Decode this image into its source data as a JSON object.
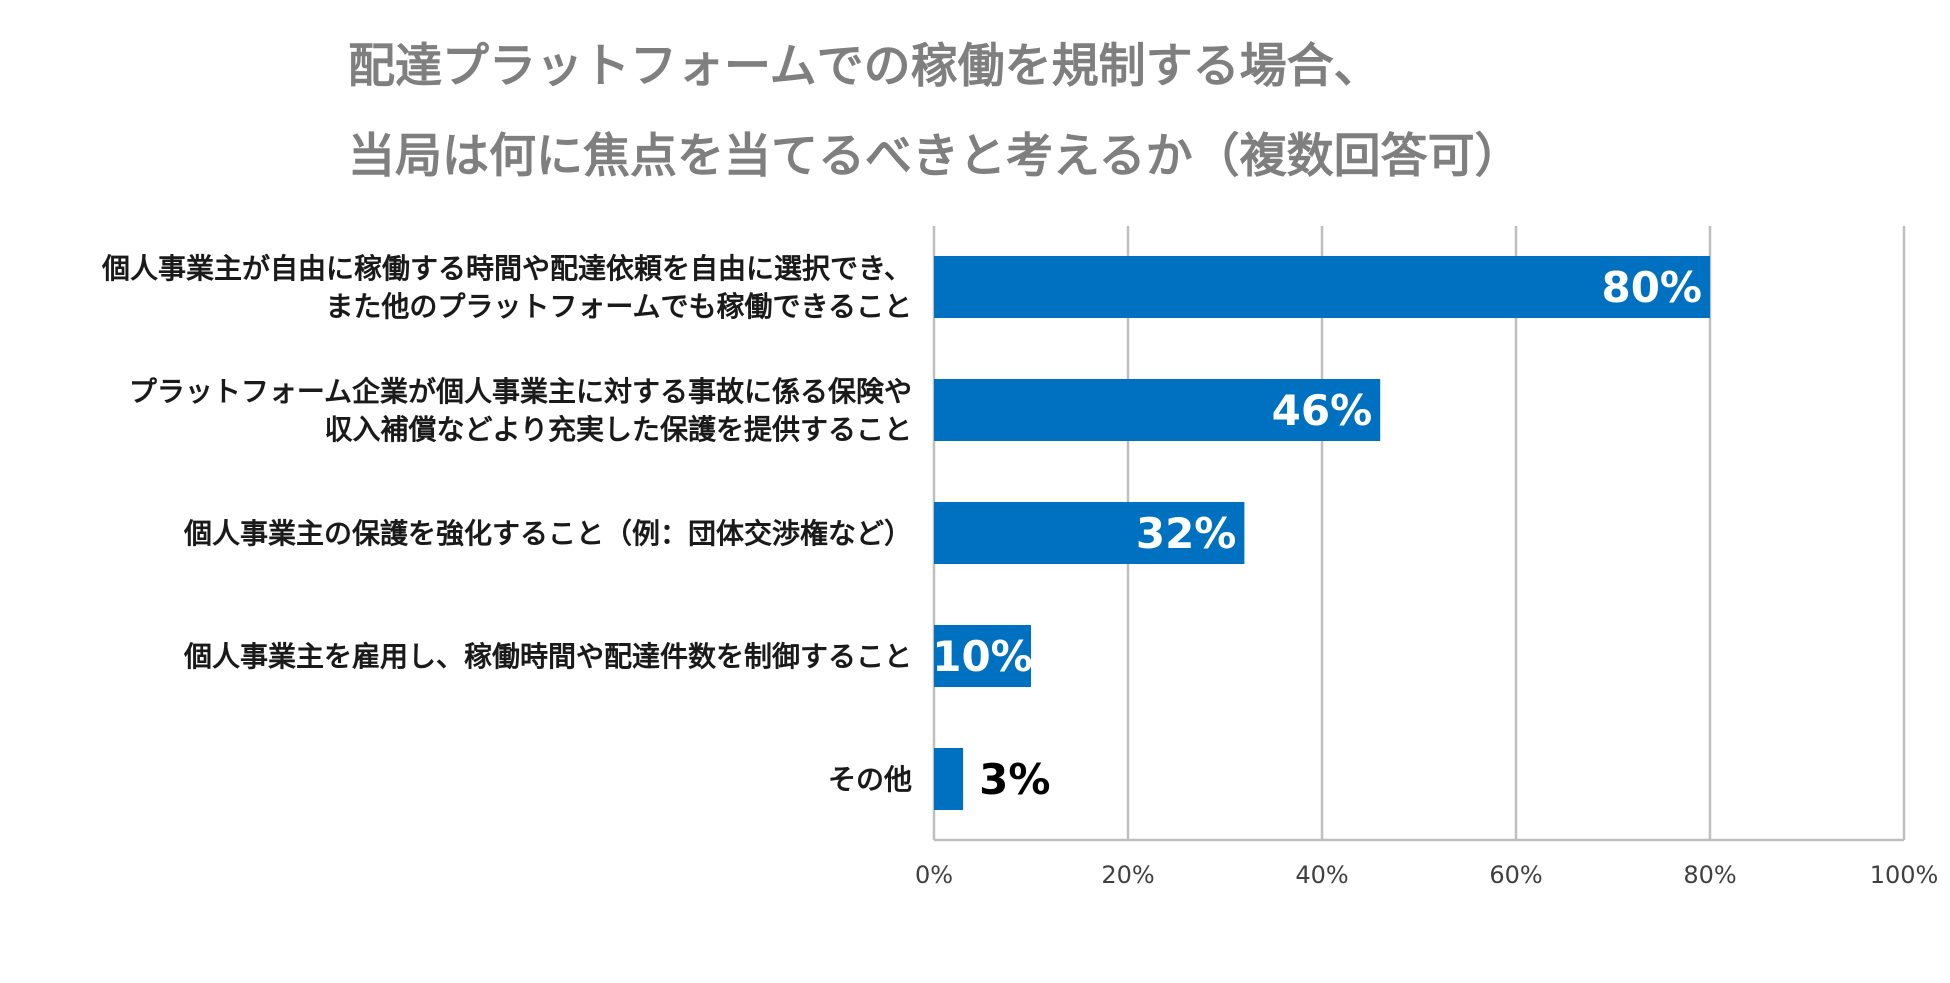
{
  "chart_data": {
    "type": "bar",
    "orientation": "horizontal",
    "title_lines": [
      "配達プラットフォームでの稼働を規制する場合、",
      "当局は何に焦点を当てるべきと考えるか（複数回答可）"
    ],
    "categories": [
      {
        "lines": [
          "個人事業主が自由に稼働する時間や配達依頼を自由に選択でき、",
          "また他のプラットフォームでも稼働できること"
        ]
      },
      {
        "lines": [
          "プラットフォーム企業が個人事業主に対する事故に係る保険や",
          "収入補償などより充実した保護を提供すること"
        ]
      },
      {
        "lines": [
          "個人事業主の保護を強化すること（例：団体交渉権など）"
        ]
      },
      {
        "lines": [
          "個人事業主を雇用し、稼働時間や配達件数を制御すること"
        ]
      },
      {
        "lines": [
          "その他"
        ]
      }
    ],
    "values": [
      80,
      46,
      32,
      10,
      3
    ],
    "data_labels": [
      "80%",
      "46%",
      "32%",
      "10%",
      "3%"
    ],
    "xlim": [
      0,
      100
    ],
    "x_ticks": [
      0,
      20,
      40,
      60,
      80,
      100
    ],
    "x_tick_labels": [
      "0%",
      "20%",
      "40%",
      "60%",
      "80%",
      "100%"
    ],
    "grid": true,
    "legend": "none",
    "colors": {
      "bar": "#0070c0",
      "label_inside": "#ffffff",
      "label_outside": "#000000",
      "title": "#7f7f7f",
      "grid": "#bfbfbf"
    }
  }
}
